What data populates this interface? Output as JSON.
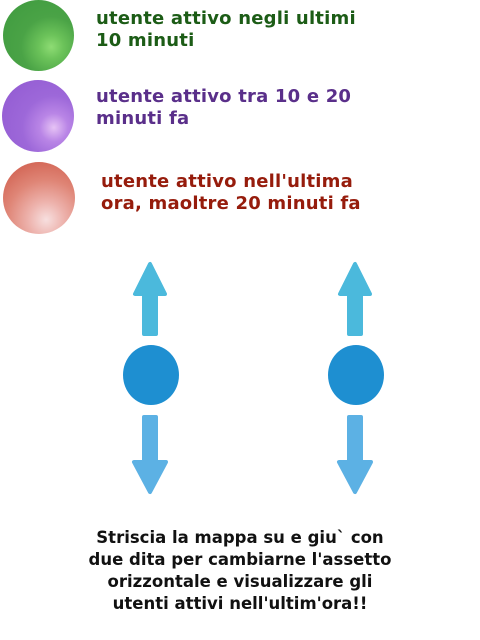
{
  "legend": {
    "items": [
      {
        "label": "utente attivo negli ultimi\n10 minuti",
        "color": "#4aa346",
        "text_color": "#1c5c16"
      },
      {
        "label": "utente attivo tra 10 e 20\nminuti fa",
        "color": "#9d68d9",
        "text_color": "#5a2f8a"
      },
      {
        "label": "utente attivo nell'ultima\nora, maoltre 20 minuti fa",
        "color": "#df8576",
        "text_color": "#961c0c"
      }
    ]
  },
  "gesture": {
    "finger_color": "#1e8fd1",
    "arrow_up_color": "#4bb9dc",
    "arrow_down_color": "#5cb1e4"
  },
  "instruction": "Striscia la mappa su e giu` con\ndue dita per cambiarne l'assetto\norizzontale e visualizzare gli\nutenti attivi nell'ultim'ora!!"
}
